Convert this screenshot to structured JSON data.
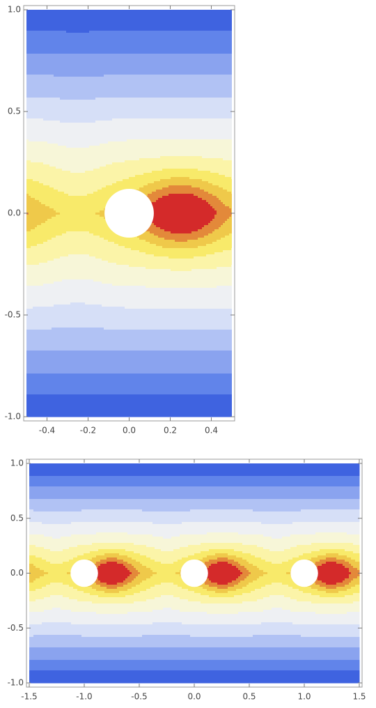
{
  "chart_data": [
    {
      "type": "contour",
      "xlim": [
        -0.5,
        0.5
      ],
      "ylim": [
        -1,
        1
      ],
      "xticks": [
        -0.4,
        -0.2,
        {
          "value": 0,
          "label": "0.0"
        },
        0.2,
        0.4
      ],
      "yticks": [
        {
          "value": -1,
          "label": "-1.0"
        },
        -0.5,
        {
          "value": 0,
          "label": "0.0"
        },
        0.5,
        {
          "value": 1,
          "label": "1.0"
        }
      ],
      "holes": [
        {
          "x": 0,
          "y": 0,
          "r": 0.12
        }
      ],
      "colors": [
        "#3f63e0",
        "#6184ea",
        "#8aa3ef",
        "#b1c2f4",
        "#d6dff7",
        "#eef0f3",
        "#f7f6d8",
        "#fbf4a8",
        "#f8ea6a",
        "#efc94a",
        "#e3893a",
        "#d42a2a"
      ]
    },
    {
      "type": "contour",
      "xlim": [
        -1.5,
        1.5
      ],
      "ylim": [
        -1,
        1
      ],
      "xticks": [
        -1.5,
        {
          "value": -1,
          "label": "-1.0"
        },
        -0.5,
        {
          "value": 0,
          "label": "0.0"
        },
        0.5,
        {
          "value": 1,
          "label": "1.0"
        },
        1.5
      ],
      "yticks": [
        {
          "value": -1,
          "label": "-1.0"
        },
        -0.5,
        {
          "value": 0,
          "label": "0.0"
        },
        0.5,
        {
          "value": 1,
          "label": "1.0"
        }
      ],
      "holes": [
        {
          "x": -1,
          "y": 0,
          "r": 0.125
        },
        {
          "x": 0,
          "y": 0,
          "r": 0.125
        },
        {
          "x": 1,
          "y": 0,
          "r": 0.125
        }
      ],
      "colors": [
        "#3f63e0",
        "#6184ea",
        "#8aa3ef",
        "#b1c2f4",
        "#d6dff7",
        "#eef0f3",
        "#f7f6d8",
        "#fbf4a8",
        "#f8ea6a",
        "#efc94a",
        "#e3893a",
        "#d42a2a"
      ]
    }
  ]
}
